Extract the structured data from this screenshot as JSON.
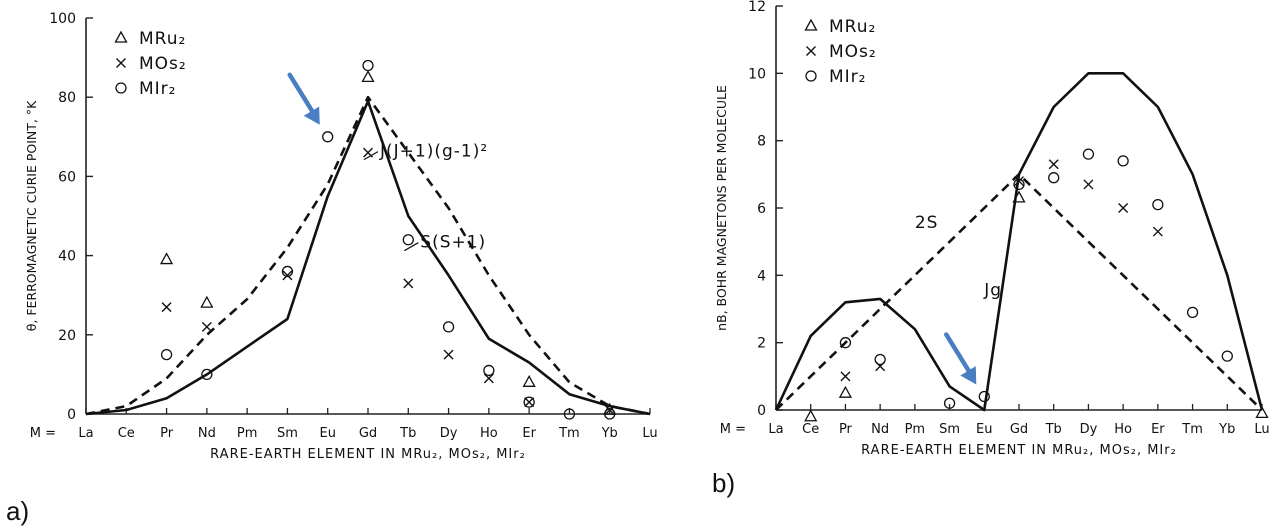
{
  "panel_labels": [
    "a)",
    "b)"
  ],
  "chart_data": [
    {
      "type": "line",
      "xlabel": "RARE-EARTH ELEMENT IN MRu2, MOs2, MIr2",
      "ylabel": "θ, FERROMAGNETIC CURIE POINT, °K",
      "x_prefix": "M =",
      "categories": [
        "La",
        "Ce",
        "Pr",
        "Nd",
        "Pm",
        "Sm",
        "Eu",
        "Gd",
        "Tb",
        "Dy",
        "Ho",
        "Er",
        "Tm",
        "Yb",
        "Lu"
      ],
      "ylim": [
        0,
        100
      ],
      "yticks": [
        0,
        20,
        40,
        60,
        80,
        100
      ],
      "grid": false,
      "legend_position": "top-left",
      "legend": [
        {
          "symbol": "triangle",
          "label": "MRu2"
        },
        {
          "symbol": "cross",
          "label": "MOs2"
        },
        {
          "symbol": "circle",
          "label": "MIr2"
        }
      ],
      "curves": [
        {
          "label": "J(J+1)(g-1)^2",
          "style": "dashed",
          "values": [
            0,
            2,
            9,
            20,
            29,
            42,
            58,
            80,
            66,
            52,
            35,
            20,
            8,
            2,
            0
          ]
        },
        {
          "label": "S(S+1)",
          "style": "solid-longdash",
          "values": [
            0,
            1,
            4,
            10,
            17,
            24,
            55,
            79,
            50,
            35,
            19,
            13,
            5,
            2,
            0
          ]
        }
      ],
      "series": [
        {
          "name": "MRu2",
          "points": [
            [
              "Pr",
              39
            ],
            [
              "Nd",
              28
            ],
            [
              "Gd",
              85
            ],
            [
              "Er",
              8
            ],
            [
              "Yb",
              1
            ]
          ]
        },
        {
          "name": "MOs2",
          "points": [
            [
              "Pr",
              27
            ],
            [
              "Nd",
              22
            ],
            [
              "Sm",
              35
            ],
            [
              "Gd",
              66
            ],
            [
              "Tb",
              33
            ],
            [
              "Dy",
              15
            ],
            [
              "Ho",
              9
            ],
            [
              "Er",
              3
            ],
            [
              "Yb",
              1
            ]
          ]
        },
        {
          "name": "MIr2",
          "points": [
            [
              "Pr",
              15
            ],
            [
              "Nd",
              10
            ],
            [
              "Sm",
              36
            ],
            [
              "Eu",
              70
            ],
            [
              "Gd",
              88
            ],
            [
              "Tb",
              44
            ],
            [
              "Dy",
              22
            ],
            [
              "Ho",
              11
            ],
            [
              "Er",
              3
            ],
            [
              "Tm",
              0
            ],
            [
              "Yb",
              0
            ]
          ]
        }
      ],
      "annotations": [
        {
          "text": "J(J+1)(g-1)²",
          "at_category": "Gd",
          "at_value": 65
        },
        {
          "text": "S(S+1)",
          "at_category": "Tb",
          "at_value": 42
        }
      ],
      "highlight_arrow": {
        "category": "Eu",
        "value": 70,
        "color": "#4a7ec2"
      }
    },
    {
      "type": "line",
      "xlabel": "RARE-EARTH ELEMENT IN MRu2, MOs2, MIr2",
      "ylabel": "nB, BOHR MAGNETONS PER MOLECULE",
      "x_prefix": "M =",
      "categories": [
        "La",
        "Ce",
        "Pr",
        "Nd",
        "Pm",
        "Sm",
        "Eu",
        "Gd",
        "Tb",
        "Dy",
        "Ho",
        "Er",
        "Tm",
        "Yb",
        "Lu"
      ],
      "ylim": [
        0,
        12
      ],
      "yticks": [
        0,
        2,
        4,
        6,
        8,
        10,
        12
      ],
      "grid": false,
      "legend_position": "top-left",
      "legend": [
        {
          "symbol": "triangle",
          "label": "MRu2"
        },
        {
          "symbol": "cross",
          "label": "MOs2"
        },
        {
          "symbol": "circle",
          "label": "MIr2"
        }
      ],
      "curves": [
        {
          "label": "2S",
          "style": "dashed",
          "values": [
            0,
            1,
            2,
            3,
            4,
            5,
            6,
            7,
            6,
            5,
            4,
            3,
            2,
            1,
            0
          ]
        },
        {
          "label": "Jg",
          "style": "solid",
          "values": [
            0,
            2.2,
            3.2,
            3.3,
            2.4,
            0.7,
            0,
            7,
            9,
            10,
            10,
            9,
            7,
            4,
            0
          ]
        }
      ],
      "series": [
        {
          "name": "MRu2",
          "points": [
            [
              "Ce",
              -0.2
            ],
            [
              "Pr",
              0.5
            ],
            [
              "Gd",
              6.3
            ],
            [
              "Lu",
              -0.1
            ]
          ]
        },
        {
          "name": "MOs2",
          "points": [
            [
              "Pr",
              1
            ],
            [
              "Nd",
              1.3
            ],
            [
              "Gd",
              6.8
            ],
            [
              "Tb",
              7.3
            ],
            [
              "Dy",
              6.7
            ],
            [
              "Ho",
              6
            ],
            [
              "Er",
              5.3
            ]
          ]
        },
        {
          "name": "MIr2",
          "points": [
            [
              "Pr",
              2
            ],
            [
              "Nd",
              1.5
            ],
            [
              "Sm",
              0.2
            ],
            [
              "Eu",
              0.4
            ],
            [
              "Gd",
              6.7
            ],
            [
              "Tb",
              6.9
            ],
            [
              "Dy",
              7.6
            ],
            [
              "Ho",
              7.4
            ],
            [
              "Er",
              6.1
            ],
            [
              "Tm",
              2.9
            ],
            [
              "Yb",
              1.6
            ]
          ]
        }
      ],
      "annotations": [
        {
          "text": "2S",
          "at_category": "Pm",
          "at_value": 5.4
        },
        {
          "text": "Jg",
          "at_category": "Eu",
          "at_value": 3.4
        }
      ],
      "highlight_arrow": {
        "category": "Eu",
        "value": 0.4,
        "color": "#4a7ec2"
      }
    }
  ]
}
